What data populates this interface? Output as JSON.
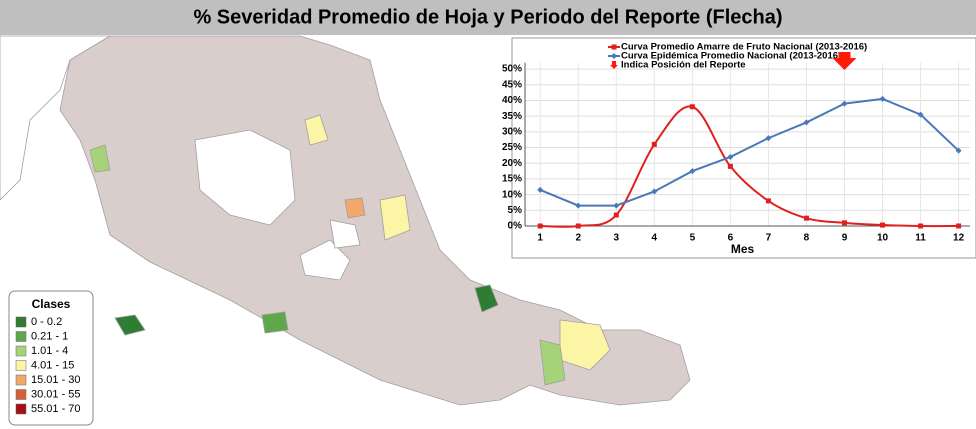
{
  "title": "% Severidad Promedio de Hoja y Periodo del Reporte (Flecha)",
  "legend": {
    "title": "Clases",
    "items": [
      {
        "label": "0 - 0.2",
        "color": "#2e7d32"
      },
      {
        "label": "0.21 - 1",
        "color": "#5fa84a"
      },
      {
        "label": "1.01 - 4",
        "color": "#a6d27a"
      },
      {
        "label": "4.01 - 15",
        "color": "#fdf5a6"
      },
      {
        "label": "15.01 - 30",
        "color": "#f4a76a"
      },
      {
        "label": "30.01 - 55",
        "color": "#d6603a"
      },
      {
        "label": "55.01 - 70",
        "color": "#a50f15"
      }
    ]
  },
  "chart_data": {
    "type": "line",
    "x": [
      1,
      2,
      3,
      4,
      5,
      6,
      7,
      8,
      9,
      10,
      11,
      12
    ],
    "xlabel": "Mes",
    "xlim": [
      0.6,
      12.3
    ],
    "xticks": [
      1,
      2,
      3,
      4,
      5,
      6,
      7,
      8,
      9,
      10,
      11,
      12
    ],
    "ylim": [
      0,
      52
    ],
    "yticks": [
      {
        "value": 0,
        "label": "0%"
      },
      {
        "value": 5,
        "label": "5%"
      },
      {
        "value": 10,
        "label": "10%"
      },
      {
        "value": 15,
        "label": "15%"
      },
      {
        "value": 20,
        "label": "20%"
      },
      {
        "value": 25,
        "label": "25%"
      },
      {
        "value": 30,
        "label": "30%"
      },
      {
        "value": 35,
        "label": "35%"
      },
      {
        "value": 40,
        "label": "40%"
      },
      {
        "value": 45,
        "label": "45%"
      },
      {
        "value": 50,
        "label": "50%"
      }
    ],
    "grid": true,
    "series": [
      {
        "name": "Curva Promedio Amarre de Fruto Nacional (2013-2016)",
        "color": "#e02020",
        "marker": "square",
        "smooth": true,
        "values": [
          0,
          0,
          3.5,
          26,
          38,
          19,
          8,
          2.5,
          1,
          0.3,
          0,
          0
        ]
      },
      {
        "name": "Curva Epidémica Promedio Nacional (2013-2016)",
        "color": "#4a78b8",
        "marker": "diamond",
        "smooth": false,
        "values": [
          11.5,
          6.5,
          6.5,
          11,
          17.5,
          22,
          28,
          33,
          39,
          40.5,
          35.5,
          24
        ]
      }
    ],
    "report_name": "Indica Posición del Reporte",
    "report_color": "#ff1a0a",
    "report_x": 9
  }
}
